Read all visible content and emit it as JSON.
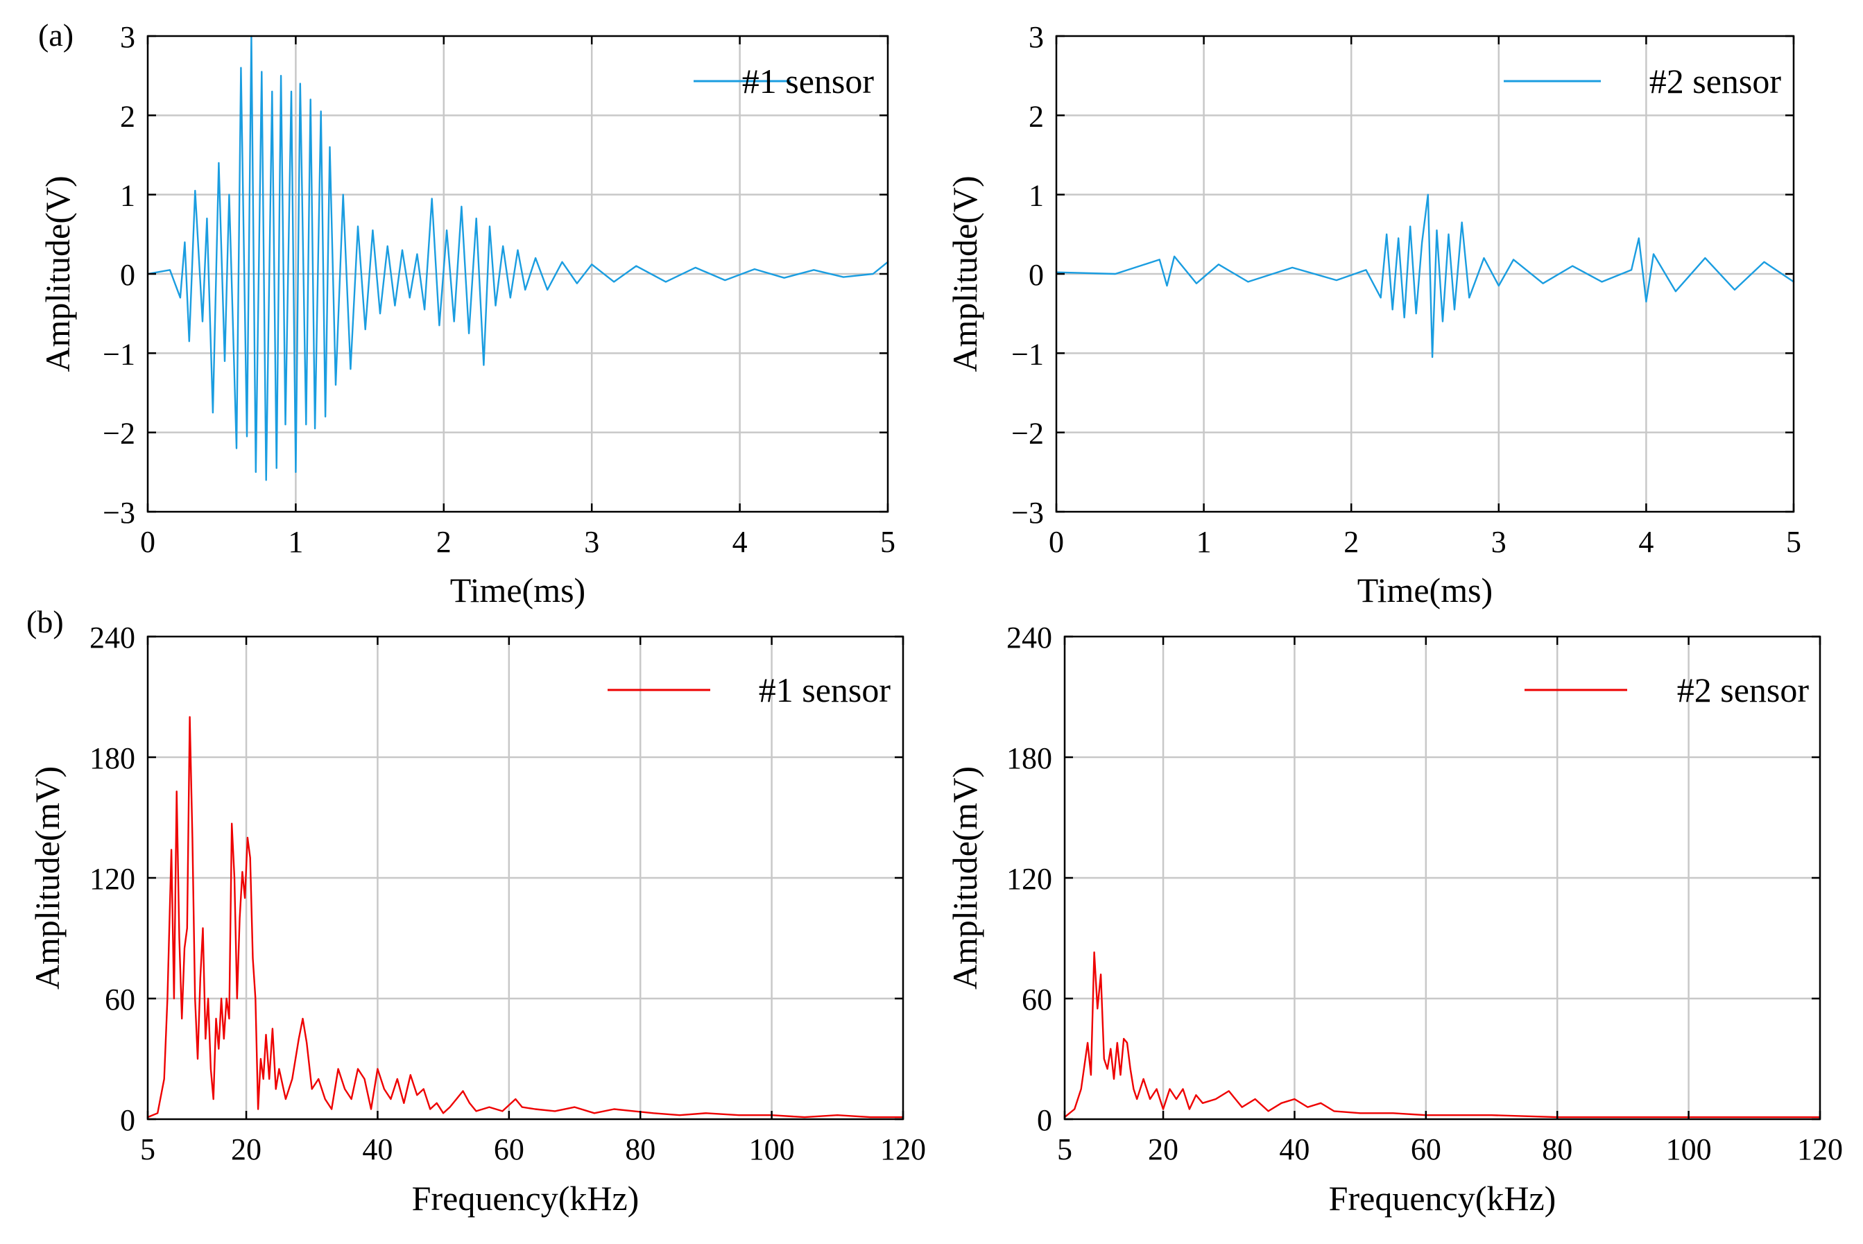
{
  "panel_labels": [
    "(a)",
    "(b)"
  ],
  "colors": {
    "time_series": "#1a9de0",
    "spectrum": "#ee0000",
    "grid": "#c8c8c8"
  },
  "chart_data": [
    {
      "type": "line",
      "panel": "(a)",
      "xlabel": "Time(ms)",
      "ylabel": "Amplitude(V)",
      "xlim": [
        0,
        5
      ],
      "ylim": [
        -3,
        3
      ],
      "xticks": [
        0,
        1,
        2,
        3,
        4,
        5
      ],
      "yticks": [
        -3,
        -2,
        -1,
        0,
        1,
        2,
        3
      ],
      "ytick_labels": [
        "−3",
        "−2",
        "−1",
        "0",
        "1",
        "2",
        "3"
      ],
      "grid": true,
      "legend_position": "top-right",
      "series": [
        {
          "name": "#1 sensor",
          "color": "#1a9de0"
        }
      ],
      "x": [
        0.0,
        0.15,
        0.22,
        0.25,
        0.28,
        0.32,
        0.37,
        0.4,
        0.44,
        0.48,
        0.52,
        0.55,
        0.6,
        0.63,
        0.67,
        0.7,
        0.73,
        0.77,
        0.8,
        0.84,
        0.87,
        0.9,
        0.93,
        0.97,
        1.0,
        1.03,
        1.07,
        1.1,
        1.13,
        1.17,
        1.2,
        1.23,
        1.27,
        1.32,
        1.37,
        1.42,
        1.47,
        1.52,
        1.57,
        1.62,
        1.67,
        1.72,
        1.77,
        1.82,
        1.87,
        1.92,
        1.97,
        2.02,
        2.07,
        2.12,
        2.17,
        2.22,
        2.27,
        2.31,
        2.35,
        2.4,
        2.45,
        2.5,
        2.55,
        2.62,
        2.7,
        2.8,
        2.9,
        3.0,
        3.15,
        3.3,
        3.5,
        3.7,
        3.9,
        4.1,
        4.3,
        4.5,
        4.7,
        4.9,
        5.0
      ],
      "values": [
        0.0,
        0.05,
        -0.3,
        0.4,
        -0.85,
        1.05,
        -0.6,
        0.7,
        -1.75,
        1.4,
        -1.1,
        1.0,
        -2.2,
        2.6,
        -2.05,
        3.0,
        -2.5,
        2.55,
        -2.6,
        2.3,
        -2.45,
        2.5,
        -1.9,
        2.3,
        -2.5,
        2.4,
        -1.9,
        2.2,
        -1.95,
        2.05,
        -1.8,
        1.6,
        -1.4,
        1.0,
        -1.2,
        0.6,
        -0.7,
        0.55,
        -0.5,
        0.35,
        -0.4,
        0.3,
        -0.3,
        0.25,
        -0.45,
        0.95,
        -0.65,
        0.55,
        -0.6,
        0.85,
        -0.75,
        0.7,
        -1.15,
        0.6,
        -0.4,
        0.35,
        -0.3,
        0.3,
        -0.2,
        0.2,
        -0.2,
        0.15,
        -0.12,
        0.12,
        -0.1,
        0.1,
        -0.1,
        0.08,
        -0.08,
        0.06,
        -0.05,
        0.05,
        -0.04,
        0.0,
        0.15
      ]
    },
    {
      "type": "line",
      "panel": "(a)",
      "xlabel": "Time(ms)",
      "ylabel": "Amplitude(V)",
      "xlim": [
        0,
        5
      ],
      "ylim": [
        -3,
        3
      ],
      "xticks": [
        0,
        1,
        2,
        3,
        4,
        5
      ],
      "yticks": [
        -3,
        -2,
        -1,
        0,
        1,
        2,
        3
      ],
      "ytick_labels": [
        "−3",
        "−2",
        "−1",
        "0",
        "1",
        "2",
        "3"
      ],
      "grid": true,
      "legend_position": "top-right",
      "series": [
        {
          "name": "#2 sensor",
          "color": "#1a9de0"
        }
      ],
      "x": [
        0.0,
        0.4,
        0.7,
        0.75,
        0.8,
        0.95,
        1.1,
        1.3,
        1.6,
        1.9,
        2.1,
        2.2,
        2.24,
        2.28,
        2.32,
        2.36,
        2.4,
        2.44,
        2.48,
        2.52,
        2.55,
        2.58,
        2.62,
        2.66,
        2.7,
        2.75,
        2.8,
        2.9,
        3.0,
        3.1,
        3.3,
        3.5,
        3.7,
        3.9,
        3.95,
        4.0,
        4.05,
        4.2,
        4.4,
        4.6,
        4.8,
        5.0
      ],
      "values": [
        0.02,
        0.0,
        0.18,
        -0.15,
        0.22,
        -0.12,
        0.12,
        -0.1,
        0.08,
        -0.08,
        0.05,
        -0.3,
        0.5,
        -0.45,
        0.45,
        -0.55,
        0.6,
        -0.5,
        0.4,
        1.0,
        -1.05,
        0.55,
        -0.6,
        0.5,
        -0.45,
        0.65,
        -0.3,
        0.2,
        -0.15,
        0.18,
        -0.12,
        0.1,
        -0.1,
        0.05,
        0.45,
        -0.35,
        0.25,
        -0.22,
        0.2,
        -0.2,
        0.15,
        -0.1
      ]
    },
    {
      "type": "line",
      "panel": "(b)",
      "xlabel": "Frequency(kHz)",
      "ylabel": "Amplitude(mV)",
      "xlim": [
        5,
        120
      ],
      "ylim": [
        0,
        240
      ],
      "xticks": [
        5,
        20,
        40,
        60,
        80,
        100,
        120
      ],
      "yticks": [
        0,
        60,
        120,
        180,
        240
      ],
      "ytick_labels": [
        "0",
        "60",
        "120",
        "180",
        "240"
      ],
      "grid": true,
      "legend_position": "top-right",
      "series": [
        {
          "name": "#1 sensor",
          "color": "#ee0000"
        }
      ],
      "x": [
        5.0,
        6.5,
        7.5,
        8.0,
        8.6,
        9.0,
        9.4,
        9.8,
        10.2,
        10.6,
        11.0,
        11.4,
        11.8,
        12.2,
        12.6,
        13.0,
        13.4,
        13.8,
        14.2,
        14.6,
        15.0,
        15.4,
        15.8,
        16.2,
        16.6,
        17.0,
        17.4,
        17.8,
        18.2,
        18.6,
        19.0,
        19.4,
        19.8,
        20.2,
        20.6,
        21.0,
        21.4,
        21.8,
        22.2,
        22.6,
        23.0,
        23.5,
        24.0,
        24.5,
        25.0,
        26.0,
        27.0,
        28.0,
        28.6,
        29.2,
        30.0,
        31.0,
        32.0,
        33.0,
        34.0,
        35.0,
        36.0,
        37.0,
        38.0,
        39.0,
        40.0,
        41.0,
        42.0,
        43.0,
        44.0,
        45.0,
        46.0,
        47.0,
        48.0,
        49.0,
        50.0,
        51.0,
        52.0,
        53.0,
        54.0,
        55.0,
        57.0,
        59.0,
        61.0,
        62.0,
        64.0,
        67.0,
        70.0,
        73.0,
        76.0,
        79.0,
        82.0,
        86.0,
        90.0,
        95.0,
        100.0,
        105.0,
        110.0,
        115.0,
        120.0
      ],
      "values": [
        1,
        3,
        20,
        60,
        134,
        60,
        163,
        90,
        50,
        85,
        95,
        200,
        140,
        60,
        30,
        70,
        95,
        40,
        60,
        25,
        10,
        50,
        35,
        60,
        40,
        60,
        50,
        147,
        120,
        60,
        100,
        123,
        110,
        140,
        130,
        80,
        60,
        5,
        30,
        20,
        42,
        20,
        45,
        15,
        25,
        10,
        20,
        40,
        50,
        38,
        15,
        20,
        10,
        5,
        25,
        15,
        10,
        25,
        20,
        5,
        25,
        15,
        10,
        20,
        8,
        22,
        12,
        15,
        5,
        8,
        3,
        6,
        10,
        14,
        8,
        4,
        6,
        4,
        10,
        6,
        5,
        4,
        6,
        3,
        5,
        4,
        3,
        2,
        3,
        2,
        2,
        1,
        2,
        1,
        1
      ]
    },
    {
      "type": "line",
      "panel": "(b)",
      "xlabel": "Frequency(kHz)",
      "ylabel": "Amplitude(mV)",
      "xlim": [
        5,
        120
      ],
      "ylim": [
        0,
        240
      ],
      "xticks": [
        5,
        20,
        40,
        60,
        80,
        100,
        120
      ],
      "yticks": [
        0,
        60,
        120,
        180,
        240
      ],
      "ytick_labels": [
        "0",
        "60",
        "120",
        "180",
        "240"
      ],
      "grid": true,
      "legend_position": "top-right",
      "series": [
        {
          "name": "#2 sensor",
          "color": "#ee0000"
        }
      ],
      "x": [
        5.0,
        6.5,
        7.5,
        8.5,
        9.0,
        9.5,
        10.0,
        10.5,
        11.0,
        11.5,
        12.0,
        12.5,
        13.0,
        13.5,
        14.0,
        14.5,
        15.0,
        15.5,
        16.0,
        16.5,
        17.0,
        18.0,
        19.0,
        20.0,
        21.0,
        22.0,
        23.0,
        24.0,
        25.0,
        26.0,
        28.0,
        30.0,
        32.0,
        34.0,
        36.0,
        38.0,
        40.0,
        42.0,
        44.0,
        46.0,
        50.0,
        55.0,
        60.0,
        70.0,
        80.0,
        90.0,
        100.0,
        110.0,
        120.0
      ],
      "values": [
        1,
        5,
        15,
        38,
        22,
        83,
        55,
        72,
        30,
        25,
        35,
        20,
        38,
        22,
        40,
        38,
        25,
        15,
        10,
        15,
        20,
        10,
        15,
        5,
        15,
        10,
        15,
        5,
        12,
        8,
        10,
        14,
        6,
        10,
        4,
        8,
        10,
        6,
        8,
        4,
        3,
        3,
        2,
        2,
        1,
        1,
        1,
        1,
        1
      ]
    }
  ]
}
